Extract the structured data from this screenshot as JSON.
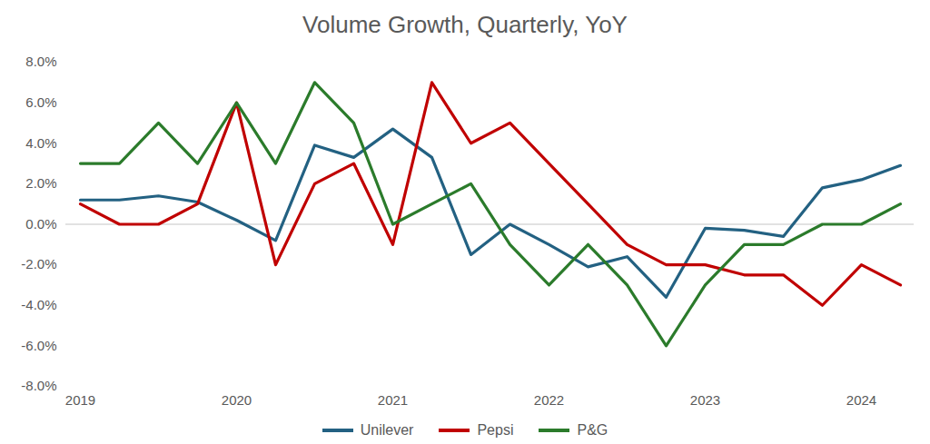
{
  "chart_data": {
    "type": "line",
    "title": "Volume Growth, Quarterly, YoY",
    "categories": [
      "2019",
      null,
      null,
      null,
      "2020",
      null,
      null,
      null,
      "2021",
      null,
      null,
      null,
      "2022",
      null,
      null,
      null,
      "2023",
      null,
      null,
      null,
      "2024",
      null
    ],
    "series": [
      {
        "name": "Unilever",
        "color": "#236182",
        "values": [
          1.2,
          1.2,
          1.4,
          1.1,
          0.2,
          -0.8,
          3.9,
          3.3,
          4.7,
          3.3,
          -1.5,
          0.0,
          -1.0,
          -2.1,
          -1.6,
          -3.6,
          -0.2,
          -0.3,
          -0.6,
          1.8,
          2.2,
          2.9
        ]
      },
      {
        "name": "Pepsi",
        "color": "#c00000",
        "values": [
          1,
          0,
          0,
          1,
          6,
          -2,
          2,
          3,
          -1,
          7,
          4,
          5,
          3,
          1,
          -1,
          -2,
          -2,
          -2.5,
          -2.5,
          -4,
          -2,
          -3
        ]
      },
      {
        "name": "P&G",
        "color": "#2b7b2b",
        "values": [
          3,
          3,
          5,
          3,
          6,
          3,
          7,
          5,
          0,
          1,
          2,
          -1,
          -3,
          -1,
          -3,
          -6,
          -3,
          -1,
          -1,
          0,
          0,
          1
        ]
      }
    ],
    "ylim": [
      -8,
      8
    ],
    "yticks": [
      {
        "value": -8,
        "label": "-8.0%"
      },
      {
        "value": -6,
        "label": "-6.0%"
      },
      {
        "value": -4,
        "label": "-4.0%"
      },
      {
        "value": -2,
        "label": "-2.0%"
      },
      {
        "value": 0,
        "label": "0.0%"
      },
      {
        "value": 2,
        "label": "2.0%"
      },
      {
        "value": 4,
        "label": "4.0%"
      },
      {
        "value": 6,
        "label": "6.0%"
      },
      {
        "value": 8,
        "label": "8.0%"
      }
    ],
    "grid": false,
    "legend": "bottom"
  }
}
